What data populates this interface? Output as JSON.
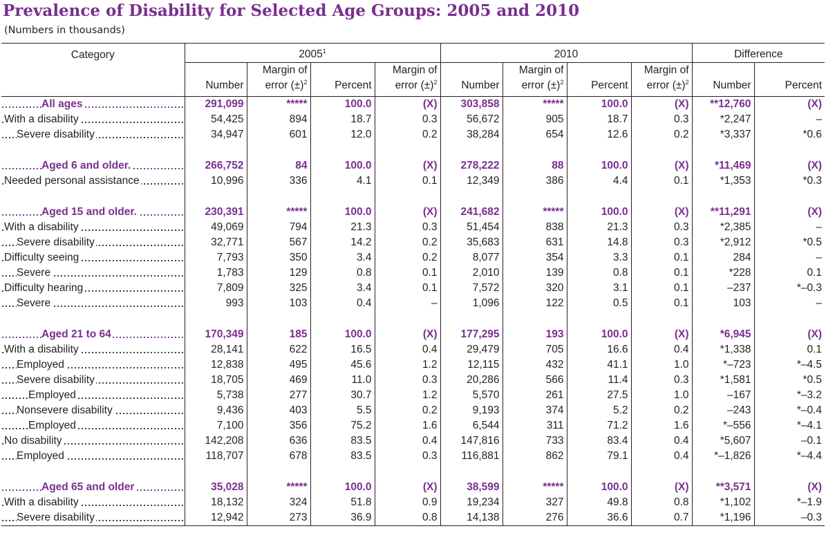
{
  "title": "Prevalence of Disability for Selected Age Groups: 2005 and 2010",
  "subtitle": "(Numbers in thousands)",
  "header": {
    "category": "Category",
    "group_2005": "2005",
    "group_2005_sup": "1",
    "group_2010": "2010",
    "group_diff": "Difference",
    "number": "Number",
    "moe_line1": "Margin of",
    "moe_line2": "error (±)",
    "moe_sup": "2",
    "percent": "Percent"
  },
  "rows": [
    {
      "type": "bold",
      "label": "All ages",
      "v": [
        "291,099",
        "*****",
        "100.0",
        "(X)",
        "303,858",
        "*****",
        "100.0",
        "(X)",
        "**12,760",
        "(X)"
      ]
    },
    {
      "type": "ind0",
      "label": "With a disability",
      "v": [
        "54,425",
        "894",
        "18.7",
        "0.3",
        "56,672",
        "905",
        "18.7",
        "0.3",
        "*2,247",
        "–"
      ]
    },
    {
      "type": "ind1",
      "label": "Severe disability",
      "v": [
        "34,947",
        "601",
        "12.0",
        "0.2",
        "38,284",
        "654",
        "12.6",
        "0.2",
        "*3,337",
        "*0.6"
      ]
    },
    {
      "type": "spacer"
    },
    {
      "type": "bold",
      "label": "Aged 6 and older.",
      "v": [
        "266,752",
        "84",
        "100.0",
        "(X)",
        "278,222",
        "88",
        "100.0",
        "(X)",
        "*11,469",
        "(X)"
      ]
    },
    {
      "type": "ind0",
      "label": "Needed personal assistance",
      "v": [
        "10,996",
        "336",
        "4.1",
        "0.1",
        "12,349",
        "386",
        "4.4",
        "0.1",
        "*1,353",
        "*0.3"
      ]
    },
    {
      "type": "spacer"
    },
    {
      "type": "bold",
      "label": "Aged 15 and older.",
      "v": [
        "230,391",
        "*****",
        "100.0",
        "(X)",
        "241,682",
        "*****",
        "100.0",
        "(X)",
        "**11,291",
        "(X)"
      ]
    },
    {
      "type": "ind0",
      "label": "With a disability",
      "v": [
        "49,069",
        "794",
        "21.3",
        "0.3",
        "51,454",
        "838",
        "21.3",
        "0.3",
        "*2,385",
        "–"
      ]
    },
    {
      "type": "ind1",
      "label": "Severe disability",
      "v": [
        "32,771",
        "567",
        "14.2",
        "0.2",
        "35,683",
        "631",
        "14.8",
        "0.3",
        "*2,912",
        "*0.5"
      ]
    },
    {
      "type": "ind0",
      "label": "Difficulty seeing",
      "v": [
        "7,793",
        "350",
        "3.4",
        "0.2",
        "8,077",
        "354",
        "3.3",
        "0.1",
        "284",
        "–"
      ]
    },
    {
      "type": "ind1",
      "label": "Severe",
      "v": [
        "1,783",
        "129",
        "0.8",
        "0.1",
        "2,010",
        "139",
        "0.8",
        "0.1",
        "*228",
        "0.1"
      ]
    },
    {
      "type": "ind0",
      "label": "Difficulty hearing",
      "v": [
        "7,809",
        "325",
        "3.4",
        "0.1",
        "7,572",
        "320",
        "3.1",
        "0.1",
        "–237",
        "*–0.3"
      ]
    },
    {
      "type": "ind1",
      "label": "Severe",
      "v": [
        "993",
        "103",
        "0.4",
        "–",
        "1,096",
        "122",
        "0.5",
        "0.1",
        "103",
        "–"
      ]
    },
    {
      "type": "spacer"
    },
    {
      "type": "bold",
      "label": "Aged 21 to 64",
      "v": [
        "170,349",
        "185",
        "100.0",
        "(X)",
        "177,295",
        "193",
        "100.0",
        "(X)",
        "*6,945",
        "(X)"
      ]
    },
    {
      "type": "ind0",
      "label": "With a disability",
      "v": [
        "28,141",
        "622",
        "16.5",
        "0.4",
        "29,479",
        "705",
        "16.6",
        "0.4",
        "*1,338",
        "0.1"
      ]
    },
    {
      "type": "ind1",
      "label": "Employed",
      "v": [
        "12,838",
        "495",
        "45.6",
        "1.2",
        "12,115",
        "432",
        "41.1",
        "1.0",
        "*–723",
        "*–4.5"
      ]
    },
    {
      "type": "ind1",
      "label": "Severe disability",
      "v": [
        "18,705",
        "469",
        "11.0",
        "0.3",
        "20,286",
        "566",
        "11.4",
        "0.3",
        "*1,581",
        "*0.5"
      ]
    },
    {
      "type": "ind2",
      "label": "Employed",
      "v": [
        "5,738",
        "277",
        "30.7",
        "1.2",
        "5,570",
        "261",
        "27.5",
        "1.0",
        "–167",
        "*–3.2"
      ]
    },
    {
      "type": "ind1",
      "label": "Nonsevere disability",
      "v": [
        "9,436",
        "403",
        "5.5",
        "0.2",
        "9,193",
        "374",
        "5.2",
        "0.2",
        "–243",
        "*–0.4"
      ]
    },
    {
      "type": "ind2",
      "label": "Employed",
      "v": [
        "7,100",
        "356",
        "75.2",
        "1.6",
        "6,544",
        "311",
        "71.2",
        "1.6",
        "*–556",
        "*–4.1"
      ]
    },
    {
      "type": "ind0",
      "label": "No disability",
      "v": [
        "142,208",
        "636",
        "83.5",
        "0.4",
        "147,816",
        "733",
        "83.4",
        "0.4",
        "*5,607",
        "–0.1"
      ]
    },
    {
      "type": "ind1",
      "label": "Employed",
      "v": [
        "118,707",
        "678",
        "83.5",
        "0.3",
        "116,881",
        "862",
        "79.1",
        "0.4",
        "*–1,826",
        "*–4.4"
      ]
    },
    {
      "type": "spacer"
    },
    {
      "type": "bold",
      "label": "Aged 65 and older",
      "v": [
        "35,028",
        "*****",
        "100.0",
        "(X)",
        "38,599",
        "*****",
        "100.0",
        "(X)",
        "**3,571",
        "(X)"
      ]
    },
    {
      "type": "ind0",
      "label": "With a disability",
      "v": [
        "18,132",
        "324",
        "51.8",
        "0.9",
        "19,234",
        "327",
        "49.8",
        "0.8",
        "*1,102",
        "*–1.9"
      ]
    },
    {
      "type": "ind1",
      "label": "Severe disability",
      "v": [
        "12,942",
        "273",
        "36.9",
        "0.8",
        "14,138",
        "276",
        "36.6",
        "0.7",
        "*1,196",
        "–0.3"
      ],
      "last": true
    }
  ],
  "colors": {
    "accent": "#7a2e8f",
    "text": "#231f20"
  }
}
